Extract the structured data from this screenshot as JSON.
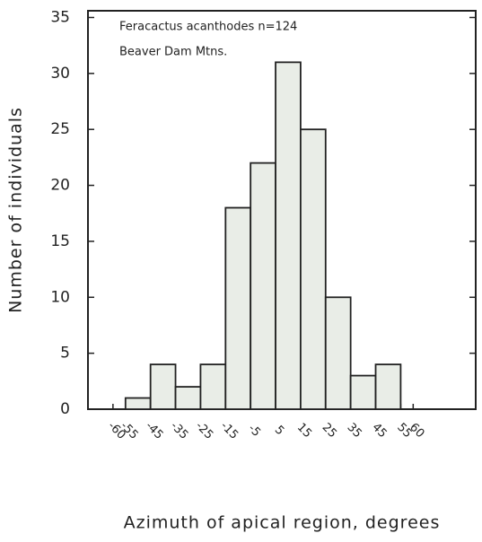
{
  "chart_data": {
    "type": "histogram",
    "annotations": [
      "Feracactus acanthodes  n=124",
      "Beaver Dam Mtns."
    ],
    "xlabel": "Azimuth of apical region, degrees",
    "ylabel": "Number of individuals",
    "bins": [
      -55,
      -45,
      -35,
      -25,
      -15,
      -5,
      5,
      15,
      25,
      35,
      45,
      55
    ],
    "values": [
      1,
      4,
      2,
      4,
      18,
      22,
      31,
      25,
      10,
      3,
      4
    ],
    "color": "#e9ede7",
    "xlim": [
      -70,
      85
    ],
    "xticks": [
      -60,
      -55,
      -45,
      -35,
      -25,
      -15,
      -5,
      5,
      15,
      25,
      35,
      45,
      55,
      60
    ],
    "ylim": [
      0,
      35.6
    ],
    "yticks": [
      0,
      5,
      10,
      15,
      20,
      25,
      30,
      35
    ]
  }
}
